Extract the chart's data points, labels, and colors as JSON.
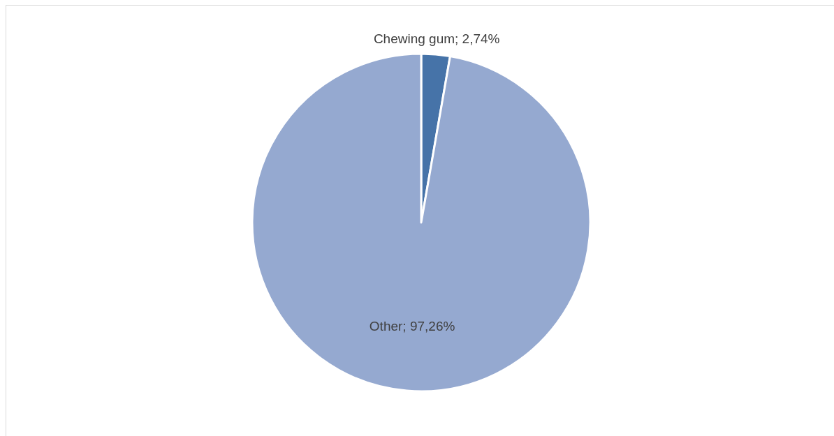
{
  "chart_data": {
    "type": "pie",
    "categories": [
      "Chewing gum",
      "Other"
    ],
    "values": [
      2.74,
      97.26
    ],
    "colors": [
      "#4673a8",
      "#95a9d0"
    ],
    "value_labels": [
      "2,74%",
      "97,26%"
    ]
  }
}
